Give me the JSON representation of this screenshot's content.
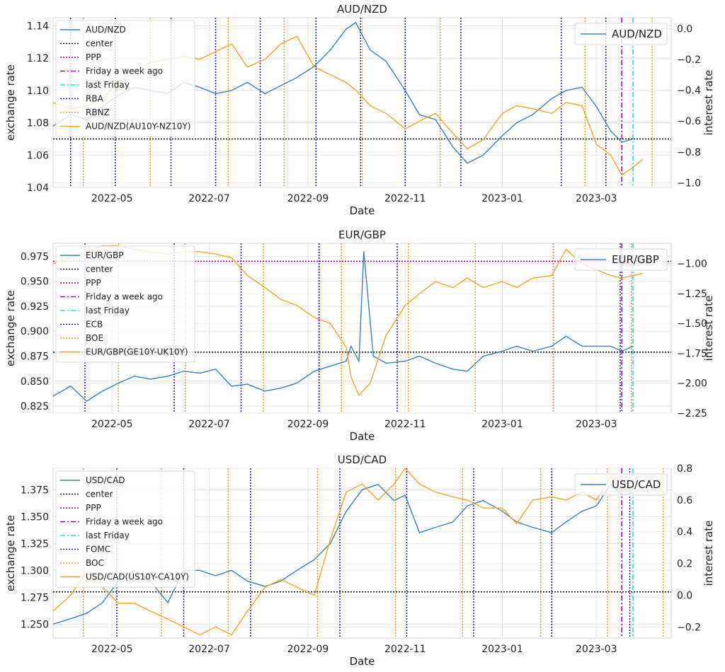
{
  "chart_data": [
    {
      "type": "line",
      "title": "AUD/NZD",
      "xlabel": "Date",
      "ylabel": "exchange rate",
      "ylabel_right": "interest rate",
      "ylim": [
        1.04,
        1.145
      ],
      "ylim_right": [
        -1.03,
        0.07
      ],
      "xlim": [
        "2022-03-25",
        "2023-04-17"
      ],
      "x_ticks": [
        "2022-05",
        "2022-07",
        "2022-09",
        "2022-11",
        "2023-01",
        "2023-03"
      ],
      "y_ticks": [
        "1.04",
        "1.06",
        "1.08",
        "1.10",
        "1.12",
        "1.14"
      ],
      "y_ticks_right": [
        "0.0",
        "−0.2",
        "−0.4",
        "−0.6",
        "−0.8",
        "−1.0"
      ],
      "center": 1.07,
      "ppp": null,
      "friday_week_ago": "2023-03-17",
      "last_friday": "2023-03-24",
      "legend_main": [
        "AUD/NZD",
        "center",
        "PPP",
        "Friday a week ago",
        "last Friday",
        "RBA",
        "RBNZ",
        "AUD/NZD(AU10Y-NZ10Y)"
      ],
      "legend_right": "AUD/NZD",
      "bank1_dates": [
        "2022-04-05",
        "2022-05-03",
        "2022-06-07",
        "2022-07-05",
        "2022-08-02",
        "2022-09-06",
        "2022-10-04",
        "2022-11-01",
        "2022-12-06",
        "2023-02-07",
        "2023-03-07"
      ],
      "bank2_dates": [
        "2022-04-13",
        "2022-05-25",
        "2022-07-13",
        "2022-08-17",
        "2022-10-05",
        "2022-11-23",
        "2023-02-22",
        "2023-04-05"
      ],
      "series": [
        {
          "name": "AUD/NZD",
          "x": [
            "2022-03-25",
            "2022-04-05",
            "2022-04-15",
            "2022-04-25",
            "2022-05-05",
            "2022-05-15",
            "2022-05-25",
            "2022-06-05",
            "2022-06-15",
            "2022-06-25",
            "2022-07-05",
            "2022-07-15",
            "2022-07-25",
            "2022-08-05",
            "2022-08-15",
            "2022-08-25",
            "2022-09-05",
            "2022-09-15",
            "2022-09-25",
            "2022-10-01",
            "2022-10-10",
            "2022-10-20",
            "2022-11-01",
            "2022-11-10",
            "2022-11-20",
            "2022-12-01",
            "2022-12-10",
            "2022-12-20",
            "2023-01-01",
            "2023-01-10",
            "2023-01-20",
            "2023-02-01",
            "2023-02-10",
            "2023-02-20",
            "2023-03-01",
            "2023-03-10",
            "2023-03-17",
            "2023-03-24"
          ],
          "values": [
            1.078,
            1.085,
            1.082,
            1.09,
            1.097,
            1.102,
            1.1,
            1.098,
            1.105,
            1.102,
            1.098,
            1.1,
            1.105,
            1.098,
            1.103,
            1.108,
            1.115,
            1.125,
            1.138,
            1.142,
            1.125,
            1.118,
            1.1,
            1.085,
            1.082,
            1.065,
            1.055,
            1.06,
            1.072,
            1.08,
            1.085,
            1.095,
            1.1,
            1.102,
            1.09,
            1.075,
            1.068,
            1.07
          ]
        },
        {
          "name": "AUD/NZD(AU10Y-NZ10Y)",
          "x": [
            "2022-03-25",
            "2022-04-05",
            "2022-04-15",
            "2022-04-25",
            "2022-05-05",
            "2022-05-15",
            "2022-05-25",
            "2022-06-05",
            "2022-06-15",
            "2022-06-25",
            "2022-07-05",
            "2022-07-15",
            "2022-07-25",
            "2022-08-05",
            "2022-08-15",
            "2022-08-25",
            "2022-09-05",
            "2022-09-15",
            "2022-09-25",
            "2022-10-01",
            "2022-10-10",
            "2022-10-20",
            "2022-11-01",
            "2022-11-10",
            "2022-11-20",
            "2022-12-01",
            "2022-12-10",
            "2022-12-20",
            "2023-01-01",
            "2023-01-10",
            "2023-01-20",
            "2023-02-01",
            "2023-02-10",
            "2023-02-20",
            "2023-03-01",
            "2023-03-10",
            "2023-03-17",
            "2023-03-24",
            "2023-03-30"
          ],
          "values": [
            -0.48,
            -0.52,
            -0.5,
            -0.45,
            -0.35,
            -0.28,
            -0.22,
            -0.2,
            -0.18,
            -0.2,
            -0.15,
            -0.1,
            -0.25,
            -0.2,
            -0.1,
            -0.05,
            -0.25,
            -0.3,
            -0.35,
            -0.4,
            -0.5,
            -0.55,
            -0.65,
            -0.6,
            -0.55,
            -0.68,
            -0.78,
            -0.72,
            -0.55,
            -0.5,
            -0.52,
            -0.55,
            -0.48,
            -0.5,
            -0.75,
            -0.82,
            -0.95,
            -0.9,
            -0.85
          ]
        }
      ]
    },
    {
      "type": "line",
      "title": "EUR/GBP",
      "xlabel": "Date",
      "ylabel": "exchange rate",
      "ylabel_right": "interest rate",
      "ylim": [
        0.818,
        0.988
      ],
      "ylim_right": [
        -2.25,
        -0.83
      ],
      "xlim": [
        "2022-03-25",
        "2023-04-17"
      ],
      "x_ticks": [
        "2022-05",
        "2022-07",
        "2022-09",
        "2022-11",
        "2023-01",
        "2023-03"
      ],
      "y_ticks": [
        "0.825",
        "0.850",
        "0.875",
        "0.900",
        "0.925",
        "0.950",
        "0.975"
      ],
      "y_ticks_right": [
        "−1.00",
        "−1.25",
        "−1.50",
        "−1.75",
        "−2.00",
        "−2.25"
      ],
      "center": 0.879,
      "ppp": 0.97,
      "friday_week_ago": "2023-03-17",
      "last_friday": "2023-03-24",
      "legend_main": [
        "EUR/GBP",
        "center",
        "PPP",
        "Friday a week ago",
        "last Friday",
        "ECB",
        "BOE",
        "EUR/GBP(GE10Y-UK10Y)"
      ],
      "legend_right": "EUR/GBP",
      "bank1_dates": [
        "2022-04-14",
        "2022-06-09",
        "2022-07-21",
        "2022-09-08",
        "2022-10-27",
        "2022-12-15",
        "2023-02-02",
        "2023-03-16"
      ],
      "bank2_dates": [
        "2022-05-05",
        "2022-06-16",
        "2022-08-04",
        "2022-09-22",
        "2022-11-03",
        "2022-12-15",
        "2023-02-02",
        "2023-03-23"
      ],
      "series": [
        {
          "name": "EUR/GBP",
          "x": [
            "2022-03-25",
            "2022-04-05",
            "2022-04-15",
            "2022-04-25",
            "2022-05-05",
            "2022-05-15",
            "2022-05-25",
            "2022-06-05",
            "2022-06-15",
            "2022-06-25",
            "2022-07-05",
            "2022-07-15",
            "2022-07-25",
            "2022-08-05",
            "2022-08-15",
            "2022-08-25",
            "2022-09-05",
            "2022-09-15",
            "2022-09-25",
            "2022-09-28",
            "2022-10-03",
            "2022-10-06",
            "2022-10-12",
            "2022-10-20",
            "2022-11-01",
            "2022-11-10",
            "2022-11-20",
            "2022-12-01",
            "2022-12-10",
            "2022-12-20",
            "2023-01-01",
            "2023-01-10",
            "2023-01-20",
            "2023-02-01",
            "2023-02-10",
            "2023-02-20",
            "2023-03-01",
            "2023-03-10",
            "2023-03-17",
            "2023-03-24"
          ],
          "values": [
            0.835,
            0.845,
            0.83,
            0.84,
            0.848,
            0.855,
            0.852,
            0.855,
            0.86,
            0.858,
            0.862,
            0.845,
            0.847,
            0.84,
            0.843,
            0.848,
            0.86,
            0.865,
            0.87,
            0.885,
            0.87,
            0.98,
            0.875,
            0.868,
            0.87,
            0.875,
            0.868,
            0.862,
            0.86,
            0.875,
            0.88,
            0.885,
            0.88,
            0.885,
            0.895,
            0.885,
            0.885,
            0.885,
            0.88,
            0.885
          ]
        },
        {
          "name": "EUR/GBP(GE10Y-UK10Y)",
          "x": [
            "2022-03-25",
            "2022-04-05",
            "2022-04-15",
            "2022-04-25",
            "2022-05-05",
            "2022-05-15",
            "2022-05-25",
            "2022-06-05",
            "2022-06-15",
            "2022-06-25",
            "2022-07-05",
            "2022-07-15",
            "2022-07-25",
            "2022-08-05",
            "2022-08-15",
            "2022-08-25",
            "2022-09-05",
            "2022-09-15",
            "2022-09-25",
            "2022-09-28",
            "2022-10-03",
            "2022-10-10",
            "2022-10-20",
            "2022-11-01",
            "2022-11-10",
            "2022-11-20",
            "2022-12-01",
            "2022-12-10",
            "2022-12-20",
            "2023-01-01",
            "2023-01-10",
            "2023-01-20",
            "2023-02-01",
            "2023-02-10",
            "2023-02-20",
            "2023-03-01",
            "2023-03-10",
            "2023-03-17",
            "2023-03-24",
            "2023-03-30"
          ],
          "values": [
            -1.0,
            -0.95,
            -0.9,
            -0.85,
            -0.85,
            -0.88,
            -0.9,
            -0.92,
            -0.9,
            -0.9,
            -0.92,
            -0.95,
            -1.1,
            -1.2,
            -1.3,
            -1.35,
            -1.45,
            -1.5,
            -1.7,
            -1.95,
            -2.1,
            -2.0,
            -1.6,
            -1.35,
            -1.25,
            -1.15,
            -1.2,
            -1.12,
            -1.2,
            -1.15,
            -1.2,
            -1.12,
            -1.1,
            -0.88,
            -1.0,
            -1.05,
            -1.1,
            -1.12,
            -1.1,
            -1.08
          ]
        }
      ]
    },
    {
      "type": "line",
      "title": "USD/CAD",
      "xlabel": "Date",
      "ylabel": "exchange rate",
      "ylabel_right": "interest rate",
      "ylim": [
        1.237,
        1.395
      ],
      "ylim_right": [
        -0.27,
        0.8
      ],
      "xlim": [
        "2022-03-25",
        "2023-04-17"
      ],
      "x_ticks": [
        "2022-05",
        "2022-07",
        "2022-09",
        "2022-11",
        "2023-01",
        "2023-03"
      ],
      "y_ticks": [
        "1.250",
        "1.275",
        "1.300",
        "1.325",
        "1.350",
        "1.375"
      ],
      "y_ticks_right": [
        "0.8",
        "0.6",
        "0.4",
        "0.2",
        "0.0",
        "−0.2"
      ],
      "center": 1.28,
      "ppp": null,
      "friday_week_ago": "2023-03-17",
      "last_friday": "2023-03-24",
      "legend_main": [
        "USD/CAD",
        "center",
        "PPP",
        "Friday a week ago",
        "last Friday",
        "FOMC",
        "BOC",
        "USD/CAD(US10Y-CA10Y)"
      ],
      "legend_right": "USD/CAD",
      "bank1_dates": [
        "2022-05-04",
        "2022-06-15",
        "2022-07-27",
        "2022-09-21",
        "2022-11-02",
        "2022-12-14",
        "2023-02-01",
        "2023-03-22"
      ],
      "bank2_dates": [
        "2022-04-13",
        "2022-06-01",
        "2022-07-13",
        "2022-09-07",
        "2022-10-26",
        "2022-12-07",
        "2023-01-25",
        "2023-03-08",
        "2023-04-12"
      ],
      "series": [
        {
          "name": "USD/CAD",
          "x": [
            "2022-03-25",
            "2022-04-05",
            "2022-04-15",
            "2022-04-25",
            "2022-05-05",
            "2022-05-15",
            "2022-05-25",
            "2022-06-05",
            "2022-06-15",
            "2022-06-25",
            "2022-07-05",
            "2022-07-15",
            "2022-07-25",
            "2022-08-05",
            "2022-08-15",
            "2022-08-25",
            "2022-09-05",
            "2022-09-15",
            "2022-09-25",
            "2022-10-05",
            "2022-10-15",
            "2022-10-25",
            "2022-11-01",
            "2022-11-10",
            "2022-11-20",
            "2022-12-01",
            "2022-12-10",
            "2022-12-20",
            "2023-01-01",
            "2023-01-10",
            "2023-01-20",
            "2023-02-01",
            "2023-02-10",
            "2023-02-20",
            "2023-03-01",
            "2023-03-10",
            "2023-03-17",
            "2023-03-24"
          ],
          "values": [
            1.25,
            1.255,
            1.26,
            1.27,
            1.29,
            1.3,
            1.29,
            1.27,
            1.3,
            1.3,
            1.295,
            1.3,
            1.29,
            1.285,
            1.29,
            1.3,
            1.31,
            1.325,
            1.355,
            1.375,
            1.38,
            1.365,
            1.37,
            1.335,
            1.34,
            1.345,
            1.36,
            1.365,
            1.355,
            1.345,
            1.34,
            1.335,
            1.345,
            1.355,
            1.36,
            1.38,
            1.37,
            1.372
          ]
        },
        {
          "name": "USD/CAD(US10Y-CA10Y)",
          "x": [
            "2022-03-25",
            "2022-04-05",
            "2022-04-15",
            "2022-04-25",
            "2022-05-05",
            "2022-05-15",
            "2022-05-25",
            "2022-06-05",
            "2022-06-15",
            "2022-06-25",
            "2022-07-05",
            "2022-07-15",
            "2022-07-25",
            "2022-08-05",
            "2022-08-15",
            "2022-08-25",
            "2022-09-05",
            "2022-09-15",
            "2022-09-25",
            "2022-10-05",
            "2022-10-15",
            "2022-10-25",
            "2022-11-01",
            "2022-11-10",
            "2022-11-20",
            "2022-12-01",
            "2022-12-10",
            "2022-12-20",
            "2023-01-01",
            "2023-01-10",
            "2023-01-20",
            "2023-02-01",
            "2023-02-10",
            "2023-02-20",
            "2023-03-01",
            "2023-03-10",
            "2023-03-17",
            "2023-03-24"
          ],
          "values": [
            -0.1,
            0.0,
            0.15,
            0.05,
            -0.05,
            -0.05,
            -0.1,
            -0.15,
            -0.2,
            -0.25,
            -0.2,
            -0.25,
            -0.1,
            0.05,
            0.1,
            0.05,
            0.0,
            0.35,
            0.65,
            0.7,
            0.6,
            0.7,
            0.8,
            0.7,
            0.65,
            0.62,
            0.6,
            0.55,
            0.55,
            0.45,
            0.6,
            0.62,
            0.6,
            0.65,
            0.6,
            0.75,
            0.65,
            0.65
          ]
        }
      ]
    }
  ],
  "colors": {
    "exchange_line": "#3a82b8",
    "interest_line": "#f5a623",
    "center_line": "#000000",
    "ppp_line": "#8b008b",
    "friday_week_ago": "#8b1a9b",
    "last_friday": "#22e0e8",
    "bank1": "#1a1acc",
    "bank2": "#f0a020"
  }
}
